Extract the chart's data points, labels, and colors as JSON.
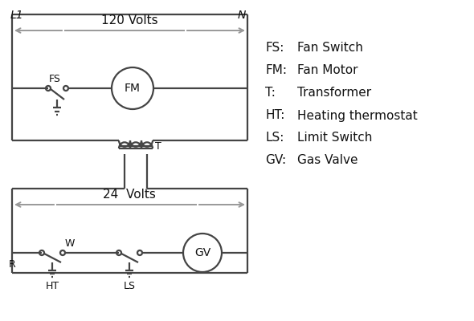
{
  "bg_color": "#ffffff",
  "line_color": "#444444",
  "text_color": "#111111",
  "legend": {
    "FS": "Fan Switch",
    "FM": "Fan Motor",
    "T": "Transformer",
    "HT": "Heating thermostat",
    "LS": "Limit Switch",
    "GV": "Gas Valve"
  },
  "figsize": [
    5.9,
    4.0
  ],
  "dpi": 100
}
